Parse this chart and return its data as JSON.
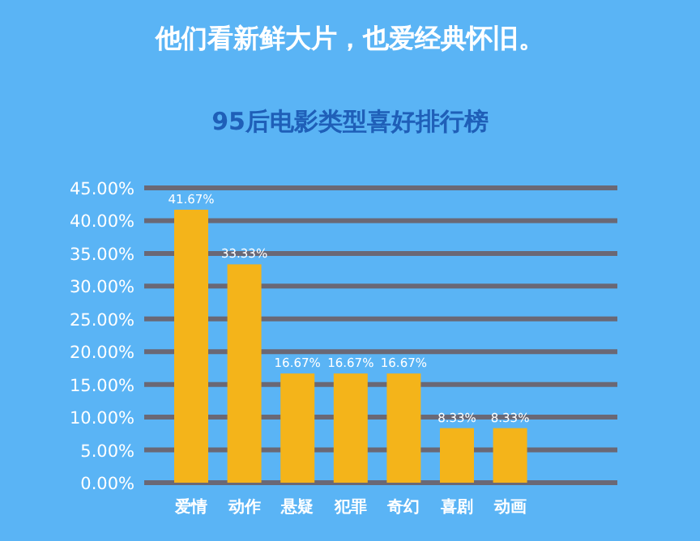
{
  "chart_data": {
    "type": "bar",
    "title": "他们看新鲜大片，也爱经典怀旧。",
    "subtitle": "95后电影类型喜好排行榜",
    "categories": [
      "爱情",
      "动作",
      "悬疑",
      "犯罪",
      "奇幻",
      "喜剧",
      "动画"
    ],
    "values": [
      41.67,
      33.33,
      16.67,
      16.67,
      16.67,
      8.33,
      8.33
    ],
    "value_labels": [
      "41.67%",
      "33.33%",
      "16.67%",
      "16.67%",
      "16.67%",
      "8.33%",
      "8.33%"
    ],
    "color": "#f4b41a",
    "ylim": [
      0,
      45
    ],
    "yticks": [
      {
        "value": 0,
        "label": "0.00%"
      },
      {
        "value": 5,
        "label": "5.00%"
      },
      {
        "value": 10,
        "label": "10.00%"
      },
      {
        "value": 15,
        "label": "15.00%"
      },
      {
        "value": 20,
        "label": "20.00%"
      },
      {
        "value": 25,
        "label": "25.00%"
      },
      {
        "value": 30,
        "label": "30.00%"
      },
      {
        "value": 35,
        "label": "35.00%"
      },
      {
        "value": 40,
        "label": "40.00%"
      },
      {
        "value": 45,
        "label": "45.00%"
      }
    ],
    "grid": "y"
  }
}
